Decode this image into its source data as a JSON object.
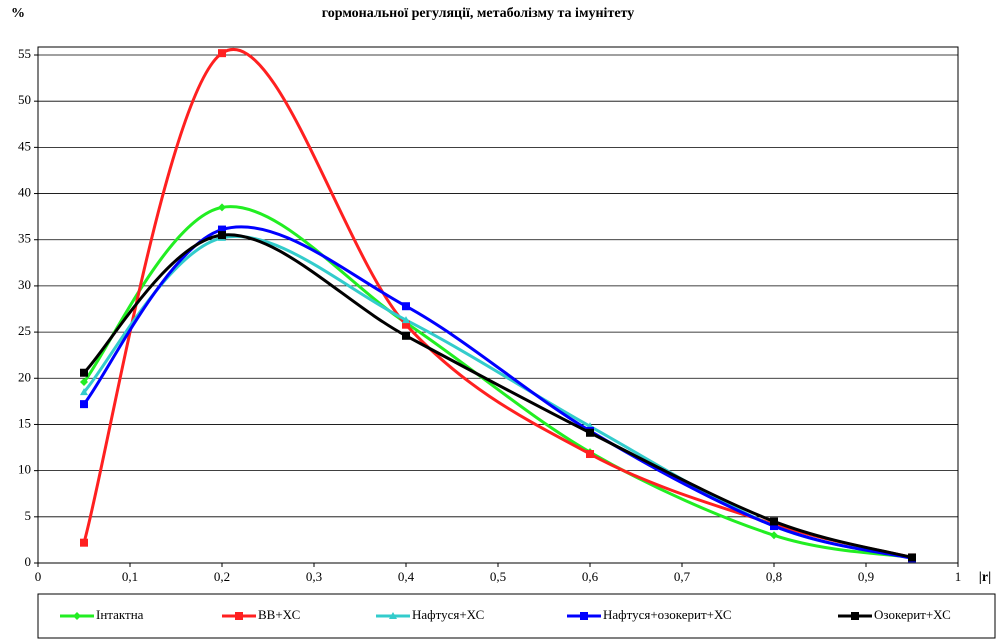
{
  "chart_data": {
    "type": "line",
    "title": "гормональної регуляції, метаболізму та імунітету",
    "ylabel": "%",
    "xlabel": "|r|",
    "x": [
      0.05,
      0.2,
      0.4,
      0.6,
      0.8,
      0.95
    ],
    "series": [
      {
        "name": "Інтактна",
        "color": "#22ee22",
        "marker": "diamond",
        "values": [
          19.6,
          38.5,
          26,
          12,
          3,
          0.6
        ]
      },
      {
        "name": "ВВ+ХС",
        "color": "#ff2020",
        "marker": "square",
        "values": [
          2.2,
          55.2,
          25.8,
          11.8,
          4.2,
          0.6
        ]
      },
      {
        "name": "Нафтуся+ХС",
        "color": "#33cccc",
        "marker": "triangle",
        "values": [
          18.5,
          35.2,
          26.3,
          14.8,
          4,
          0.6
        ]
      },
      {
        "name": "Нафтуся+озокерит+ХС",
        "color": "#0000ff",
        "marker": "square",
        "values": [
          17.2,
          36.1,
          27.8,
          14.3,
          4,
          0.5
        ]
      },
      {
        "name": "Озокерит+ХС",
        "color": "#000000",
        "marker": "square",
        "values": [
          20.6,
          35.5,
          24.6,
          14.1,
          4.5,
          0.6
        ]
      }
    ],
    "xlim": [
      0,
      1
    ],
    "xticks": [
      0,
      {
        "value": 0.1,
        "label": "0,1"
      },
      {
        "value": 0.2,
        "label": "0,2"
      },
      {
        "value": 0.3,
        "label": "0,3"
      },
      {
        "value": 0.4,
        "label": "0,4"
      },
      {
        "value": 0.5,
        "label": "0,5"
      },
      {
        "value": 0.6,
        "label": "0,6"
      },
      {
        "value": 0.7,
        "label": "0,7"
      },
      {
        "value": 0.8,
        "label": "0,8"
      },
      {
        "value": 0.9,
        "label": "0,9"
      },
      1
    ],
    "ylim": [
      0,
      55
    ],
    "yticks": [
      0,
      5,
      10,
      15,
      20,
      25,
      30,
      35,
      40,
      45,
      50,
      55
    ],
    "grid": true,
    "smooth": true,
    "legend": "bottom"
  }
}
